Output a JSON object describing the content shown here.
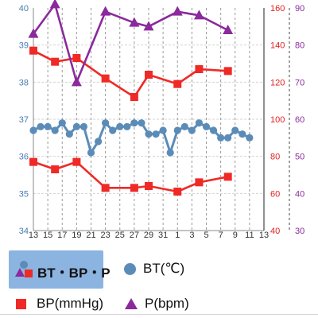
{
  "legend": {
    "combo": "BT・BP・P",
    "bt": "BT(℃)",
    "bp": "BP(mmHg)",
    "p": "P(bpm)"
  },
  "colors": {
    "bt": "#5b8cb8",
    "bp": "#ef2a26",
    "p": "#8b2a9c",
    "tab_bg": "#8cb4e1"
  },
  "chart_data": {
    "type": "line",
    "x_tick_labels": [
      "13",
      "15",
      "17",
      "19",
      "21",
      "23",
      "25",
      "27",
      "29",
      "31",
      "1",
      "3",
      "5",
      "7",
      "9",
      "11",
      "13"
    ],
    "axes": {
      "bt": {
        "ylim": [
          34,
          40
        ],
        "ticks": [
          "34",
          "35",
          "36",
          "37",
          "38",
          "39",
          "40"
        ]
      },
      "bp": {
        "ylim": [
          40,
          160
        ],
        "ticks": [
          "40",
          "60",
          "80",
          "100",
          "120",
          "140",
          "160"
        ]
      },
      "p": {
        "ylim": [
          30,
          90
        ],
        "ticks": [
          "30",
          "40",
          "50",
          "60",
          "70",
          "80",
          "90"
        ]
      }
    },
    "grid": true,
    "series": [
      {
        "name": "BT(℃)",
        "axis": "bt",
        "x": [
          13,
          14,
          15,
          16,
          17,
          18,
          19,
          20,
          21,
          22,
          23,
          24,
          25,
          26,
          27,
          28,
          29,
          30,
          31,
          32,
          33,
          34,
          35,
          36,
          37,
          38,
          39,
          40,
          41,
          42,
          43
        ],
        "values": [
          36.7,
          36.8,
          36.8,
          36.7,
          36.9,
          36.6,
          36.8,
          36.8,
          36.1,
          36.4,
          36.9,
          36.7,
          36.8,
          36.8,
          36.9,
          36.9,
          36.6,
          36.6,
          36.7,
          36.1,
          36.7,
          36.8,
          36.7,
          36.9,
          36.8,
          36.7,
          36.5,
          36.5,
          36.7,
          36.6,
          36.5
        ]
      },
      {
        "name": "BP(mmHg)",
        "axis": "bp",
        "x": [
          13,
          16,
          19,
          23,
          27,
          29,
          33,
          36,
          40
        ],
        "values": [
          137,
          131,
          133,
          122,
          112,
          124,
          119,
          127,
          126
        ]
      },
      {
        "name": "BP(mmHg)",
        "axis": "bp",
        "x": [
          13,
          16,
          19,
          23,
          27,
          29,
          33,
          36,
          40
        ],
        "values": [
          77,
          73,
          77,
          63,
          63,
          64,
          61,
          66,
          69
        ]
      },
      {
        "name": "P(bpm)",
        "axis": "p",
        "x": [
          13,
          16,
          19,
          23,
          27,
          29,
          33,
          36,
          40
        ],
        "values": [
          83,
          91,
          70,
          89,
          86,
          85,
          89,
          88,
          84
        ]
      }
    ]
  }
}
